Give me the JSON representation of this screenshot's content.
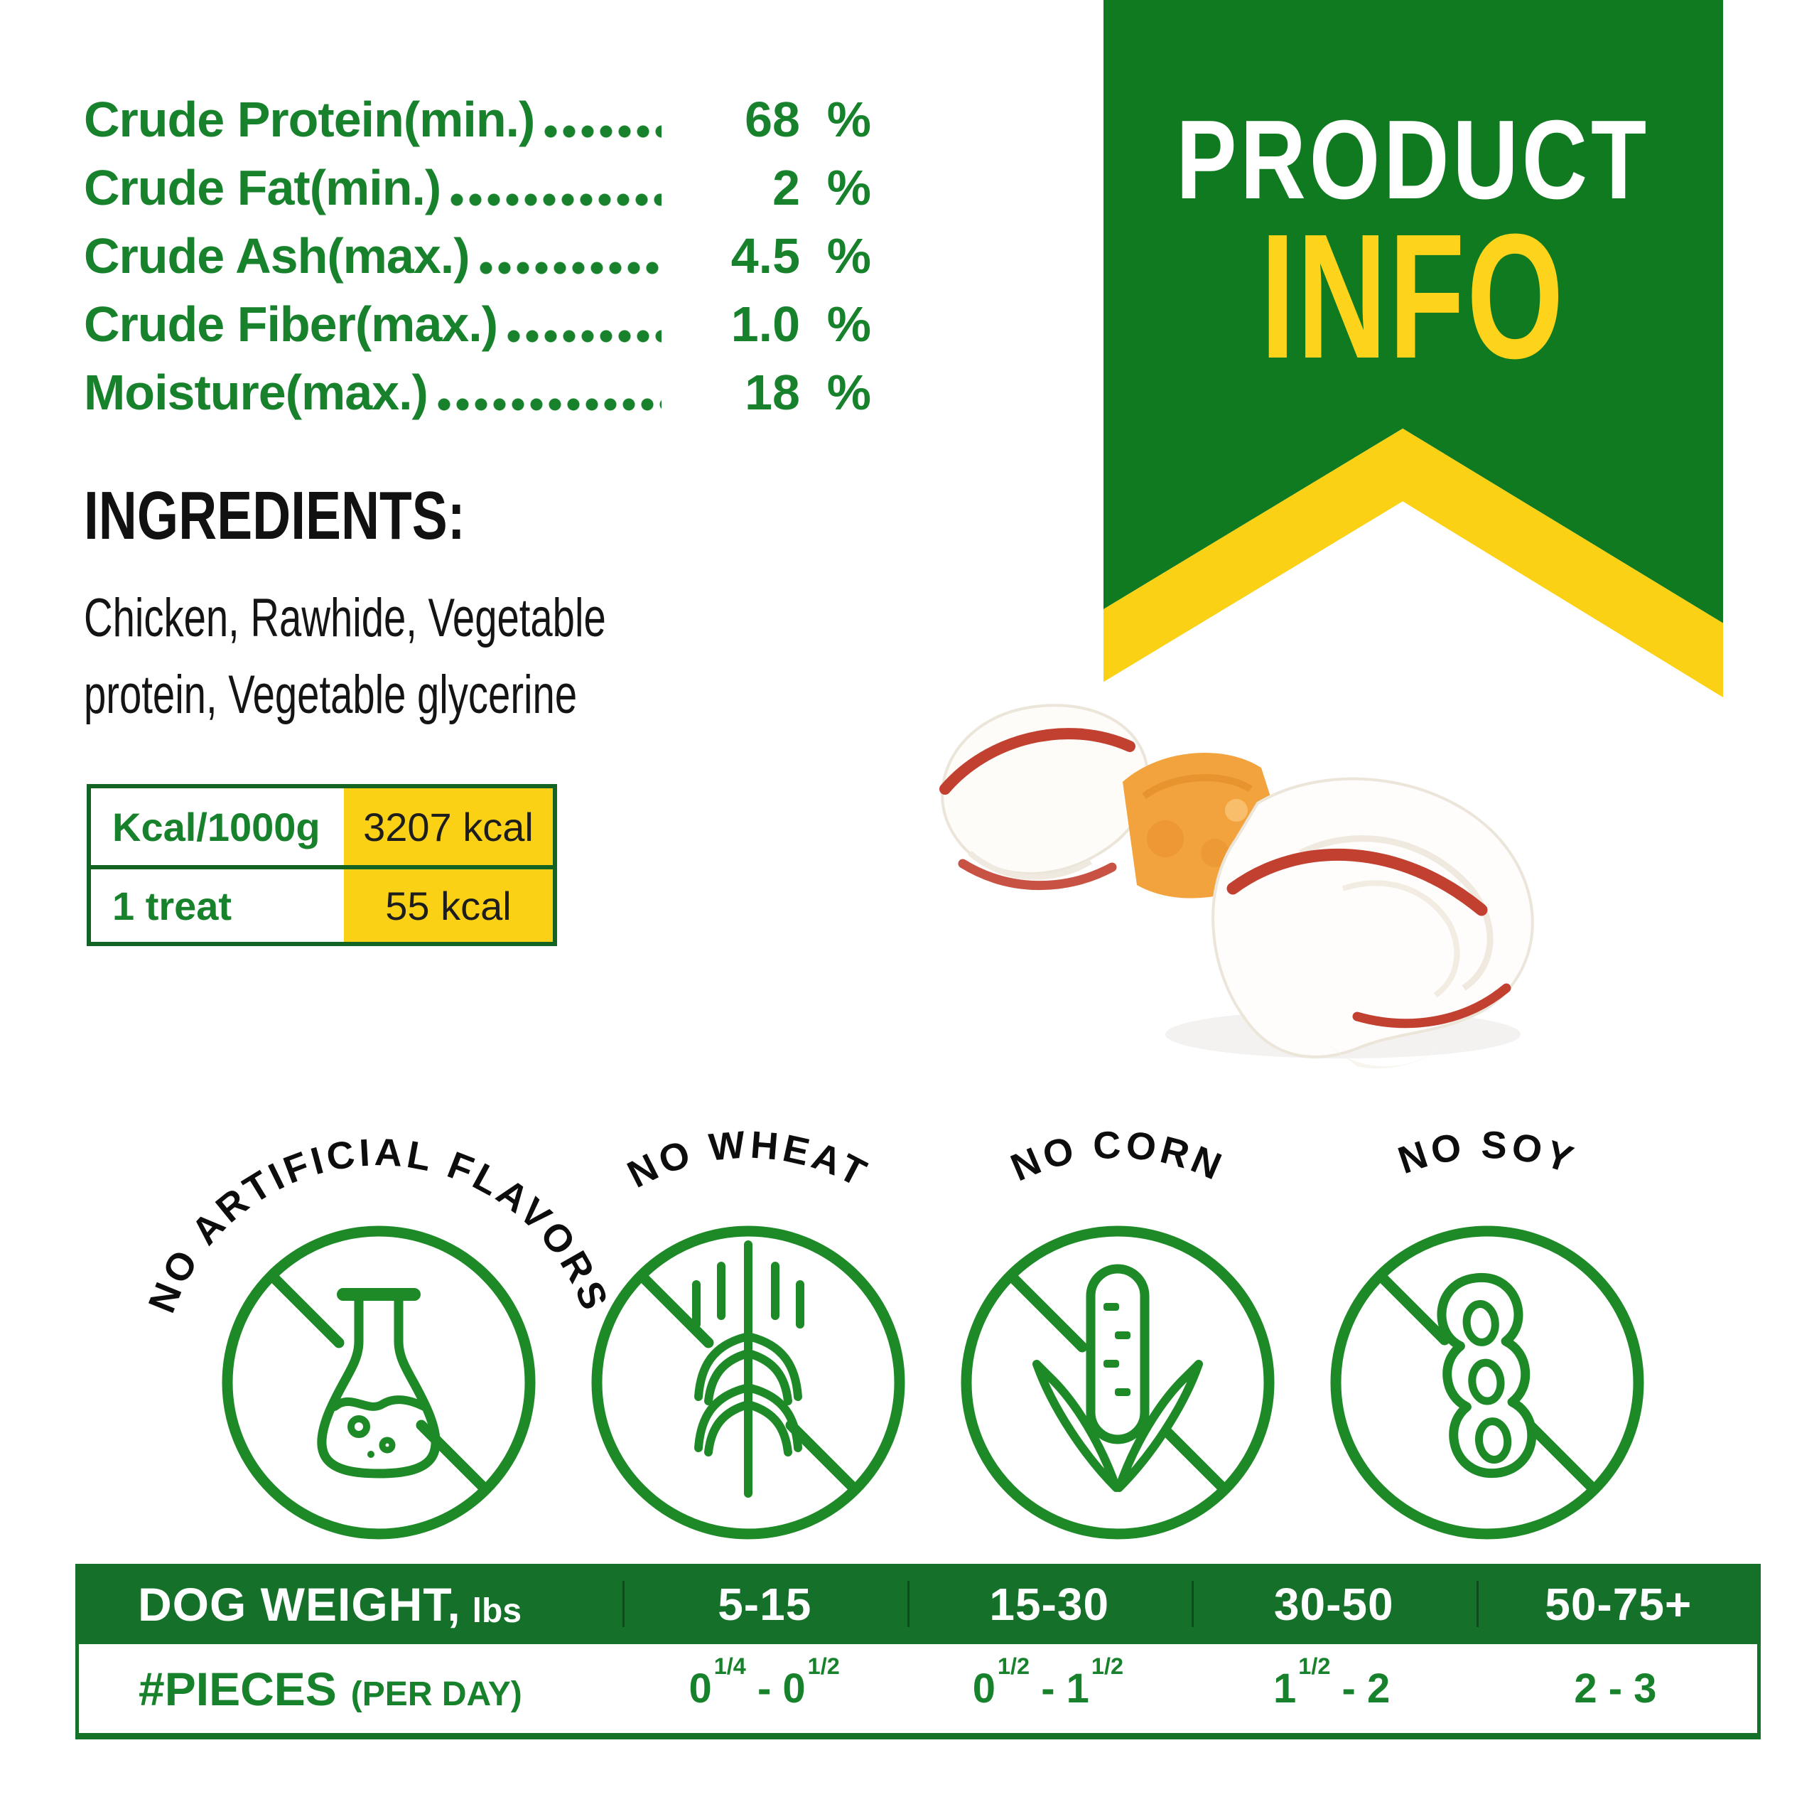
{
  "colors": {
    "green_dark": "#15702a",
    "green_ribbon": "#107a20",
    "green_icon": "#1e8a27",
    "green_text": "#17812c",
    "yellow": "#fbd116",
    "red_stripe": "#c24030",
    "orange": "#f3a33e"
  },
  "nutrition": {
    "rows": [
      {
        "label": "Crude Protein(min.)",
        "value": "68",
        "unit": "%"
      },
      {
        "label": "Crude Fat(min.)",
        "value": "2",
        "unit": "%"
      },
      {
        "label": "Crude Ash(max.)",
        "value": "4.5",
        "unit": "%"
      },
      {
        "label": "Crude Fiber(max.)",
        "value": "1.0",
        "unit": "%"
      },
      {
        "label": "Moisture(max.)",
        "value": "18",
        "unit": "%"
      }
    ]
  },
  "ingredients": {
    "heading": "INGREDIENTS:",
    "text": "Chicken, Rawhide, Vegetable protein, Vegetable glycerine"
  },
  "calories": {
    "rows": [
      {
        "label": "Kcal/1000g",
        "value": "3207 kcal"
      },
      {
        "label": "1 treat",
        "value": "55 kcal"
      }
    ]
  },
  "ribbon": {
    "line1": "PRODUCT",
    "line2": "INFO"
  },
  "badges": [
    {
      "label": "NO ARTIFICIAL FLAVORS",
      "icon": "flask-icon"
    },
    {
      "label": "NO WHEAT",
      "icon": "wheat-icon"
    },
    {
      "label": "NO CORN",
      "icon": "corn-icon"
    },
    {
      "label": "NO SOY",
      "icon": "soy-icon"
    }
  ],
  "feeding_table": {
    "header_label": "DOG WEIGHT,",
    "header_unit": "lbs",
    "weights": [
      "5-15",
      "15-30",
      "30-50",
      "50-75+"
    ],
    "row_label": "#PIECES",
    "row_label_sub": "(PER DAY)",
    "pieces": [
      {
        "b1": "0",
        "f1": "1/4",
        "b2": "0",
        "f2": "1/2"
      },
      {
        "b1": "0",
        "f1": "1/2",
        "b2": "1",
        "f2": "1/2"
      },
      {
        "b1": "1",
        "f1": "1/2",
        "b2": "2",
        "f2": ""
      },
      {
        "b1": "2",
        "f1": "",
        "b2": "3",
        "f2": ""
      }
    ]
  }
}
